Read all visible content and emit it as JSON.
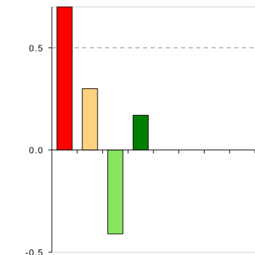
{
  "chart_data": {
    "type": "bar",
    "title": "",
    "xlabel": "",
    "ylabel": "",
    "ylim": [
      -0.5,
      0.7
    ],
    "y_ticks": [
      {
        "value": 0.5,
        "label": "0.5"
      },
      {
        "value": 0.0,
        "label": "0.0"
      },
      {
        "value": -0.5,
        "label": "-0.5"
      }
    ],
    "reference_lines": [
      0.5
    ],
    "categories": [
      "",
      "",
      "",
      "",
      "",
      "",
      "",
      ""
    ],
    "values": [
      0.7,
      0.3,
      -0.41,
      0.17,
      null,
      null,
      null,
      null
    ],
    "colors": [
      "#ff0000",
      "#ffd280",
      "#88e65e",
      "#008000"
    ],
    "grid": false,
    "legend": "none"
  }
}
